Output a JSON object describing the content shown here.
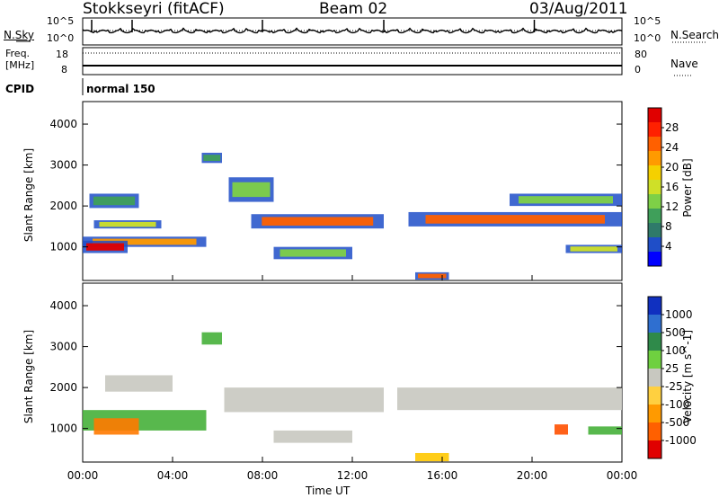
{
  "header": {
    "station": "Stokkseyri (fitACF)",
    "beam": "Beam 02",
    "date": "03/Aug/2011"
  },
  "top_panel_labels": {
    "nsky": "N.Sky",
    "nsearch": "N.Search",
    "freq": "Freq.",
    "freq_unit": "[MHz]",
    "nave": "Nave",
    "cpid": "CPID",
    "cpid_value": "normal 150",
    "noise_tick_hi": "10^5",
    "noise_tick_lo": "10^0",
    "freq_tick_hi": "18",
    "freq_tick_lo": "8",
    "nave_tick_hi": "80",
    "nave_tick_lo": "0"
  },
  "chart_data": [
    {
      "type": "heatmap",
      "name": "power",
      "ylabel": "Slant Range [km]",
      "yticks": [
        "1000",
        "2000",
        "3000",
        "4000"
      ],
      "ylim": [
        180,
        4550
      ],
      "colorbar_label": "Power [dB]",
      "colorbar_ticks": [
        "4",
        "8",
        "12",
        "16",
        "20",
        "24",
        "28"
      ],
      "colorbar_colors": [
        "#0000ff",
        "#1f4ec8",
        "#2f7a6a",
        "#3f9f5a",
        "#7ed047",
        "#cfe028",
        "#f5d000",
        "#ff9a00",
        "#ff6000",
        "#ff2000",
        "#e00000"
      ],
      "bands": [
        {
          "x": [
            0.0,
            5.5
          ],
          "y": [
            1000,
            1250
          ],
          "level": 0.7
        },
        {
          "x": [
            0.0,
            2.0
          ],
          "y": [
            850,
            1150
          ],
          "level": 0.95
        },
        {
          "x": [
            0.5,
            3.5
          ],
          "y": [
            1450,
            1650
          ],
          "level": 0.5
        },
        {
          "x": [
            0.3,
            2.5
          ],
          "y": [
            1950,
            2300
          ],
          "level": 0.25
        },
        {
          "x": [
            5.3,
            6.2
          ],
          "y": [
            3050,
            3300
          ],
          "level": 0.3
        },
        {
          "x": [
            6.5,
            8.5
          ],
          "y": [
            2100,
            2700
          ],
          "level": 0.4
        },
        {
          "x": [
            7.5,
            13.4
          ],
          "y": [
            1450,
            1800
          ],
          "level": 0.75
        },
        {
          "x": [
            8.5,
            12.0
          ],
          "y": [
            700,
            1000
          ],
          "level": 0.35
        },
        {
          "x": [
            14.5,
            24.0
          ],
          "y": [
            1500,
            1850
          ],
          "level": 0.75
        },
        {
          "x": [
            19.0,
            24.0
          ],
          "y": [
            2000,
            2300
          ],
          "level": 0.35
        },
        {
          "x": [
            21.5,
            24.0
          ],
          "y": [
            850,
            1050
          ],
          "level": 0.45
        },
        {
          "x": [
            14.8,
            16.3
          ],
          "y": [
            200,
            380
          ],
          "level": 0.8
        }
      ]
    },
    {
      "type": "heatmap",
      "name": "velocity",
      "xlabel": "Time UT",
      "xticks": [
        "00:00",
        "04:00",
        "08:00",
        "12:00",
        "16:00",
        "20:00",
        "00:00"
      ],
      "xlim": [
        0,
        24
      ],
      "ylabel": "Slant Range [km]",
      "yticks": [
        "1000",
        "2000",
        "3000",
        "4000"
      ],
      "ylim": [
        180,
        4550
      ],
      "colorbar_label": "Velocity [m s^-1]",
      "colorbar_ticks": [
        "1000",
        "500",
        "100",
        "25",
        "-25",
        "-100",
        "-500",
        "-1000"
      ],
      "colorbar_colors": [
        "#1030c0",
        "#2f6fd0",
        "#2f8a4a",
        "#6fd040",
        "#c8c8c0",
        "#ffd040",
        "#ff9a00",
        "#ff6000",
        "#e00000"
      ],
      "bands": [
        {
          "x": [
            0.0,
            5.5
          ],
          "y": [
            950,
            1450
          ],
          "color": "#46b03a"
        },
        {
          "x": [
            0.5,
            2.5
          ],
          "y": [
            850,
            1250
          ],
          "color": "#ff7a00"
        },
        {
          "x": [
            5.3,
            6.2
          ],
          "y": [
            3050,
            3350
          ],
          "color": "#46b03a"
        },
        {
          "x": [
            6.3,
            13.4
          ],
          "y": [
            1400,
            2000
          ],
          "color": "#c8c8c0"
        },
        {
          "x": [
            14.0,
            24.0
          ],
          "y": [
            1450,
            2000
          ],
          "color": "#c8c8c0"
        },
        {
          "x": [
            1.0,
            4.0
          ],
          "y": [
            1900,
            2300
          ],
          "color": "#c8c8c0"
        },
        {
          "x": [
            8.5,
            12.0
          ],
          "y": [
            650,
            950
          ],
          "color": "#c8c8c0"
        },
        {
          "x": [
            21.0,
            21.6
          ],
          "y": [
            850,
            1100
          ],
          "color": "#ff5000"
        },
        {
          "x": [
            22.5,
            24.0
          ],
          "y": [
            850,
            1050
          ],
          "color": "#46b03a"
        },
        {
          "x": [
            14.8,
            16.3
          ],
          "y": [
            200,
            400
          ],
          "color": "#ffc800"
        }
      ]
    }
  ],
  "xaxis": {
    "label": "Time UT",
    "ticks": [
      "00:00",
      "04:00",
      "08:00",
      "12:00",
      "16:00",
      "20:00",
      "00:00"
    ]
  }
}
